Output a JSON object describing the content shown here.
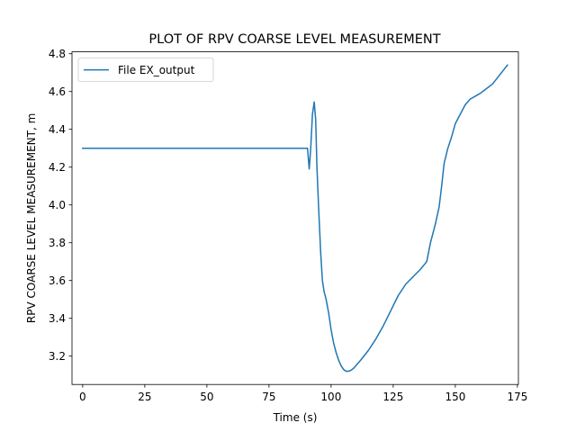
{
  "chart_data": {
    "type": "line",
    "title": "PLOT OF RPV COARSE LEVEL MEASUREMENT",
    "xlabel": "Time (s)",
    "ylabel": "RPV COARSE LEVEL MEASUREMENT, m",
    "xlim": [
      -4.3,
      175.4
    ],
    "ylim": [
      3.05,
      4.81
    ],
    "xticks": [
      0,
      25,
      50,
      75,
      100,
      125,
      150,
      175
    ],
    "yticks": [
      3.2,
      3.4,
      3.6,
      3.8,
      4.0,
      4.2,
      4.4,
      4.6,
      4.8
    ],
    "xtick_labels": [
      "0",
      "25",
      "50",
      "75",
      "100",
      "125",
      "150",
      "175"
    ],
    "ytick_labels": [
      "3.2",
      "3.4",
      "3.6",
      "3.8",
      "4.0",
      "4.2",
      "4.4",
      "4.6",
      "4.8"
    ],
    "grid": false,
    "legend_position": "upper-left",
    "series": [
      {
        "name": "File EX_output",
        "color": "#1f77b4",
        "x": [
          0,
          20,
          40,
          60,
          80,
          90.5,
          91.2,
          91.8,
          92.5,
          93.2,
          93.8,
          94.3,
          95,
          95.8,
          96.5,
          97.2,
          98,
          99,
          100,
          101,
          102,
          103,
          104,
          105,
          106,
          107,
          108,
          109,
          110,
          112,
          115,
          118,
          121,
          124,
          127,
          130,
          133,
          136,
          138.5,
          140,
          142,
          143.5,
          144.5,
          145.5,
          147,
          148.5,
          150,
          152,
          154,
          156,
          158,
          160,
          162,
          165,
          168,
          171
        ],
        "y": [
          4.3,
          4.3,
          4.3,
          4.3,
          4.3,
          4.3,
          4.19,
          4.3,
          4.48,
          4.545,
          4.45,
          4.2,
          3.98,
          3.75,
          3.6,
          3.54,
          3.5,
          3.43,
          3.34,
          3.27,
          3.22,
          3.18,
          3.15,
          3.13,
          3.12,
          3.12,
          3.125,
          3.135,
          3.15,
          3.18,
          3.23,
          3.29,
          3.36,
          3.44,
          3.52,
          3.58,
          3.62,
          3.66,
          3.7,
          3.8,
          3.9,
          3.99,
          4.1,
          4.22,
          4.3,
          4.36,
          4.43,
          4.48,
          4.53,
          4.56,
          4.575,
          4.59,
          4.61,
          4.64,
          4.69,
          4.74
        ]
      }
    ]
  }
}
